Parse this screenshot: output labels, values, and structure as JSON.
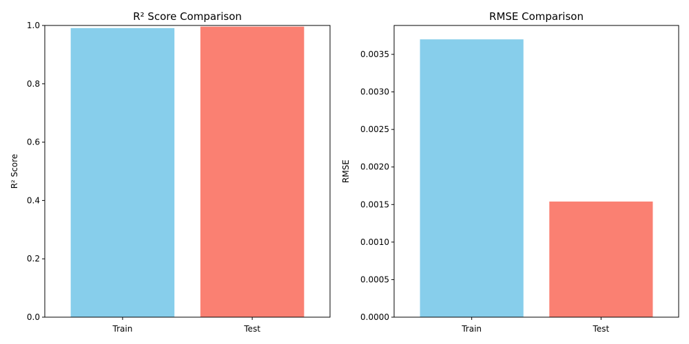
{
  "chart_data": [
    {
      "type": "bar",
      "title": "R² Score Comparison",
      "xlabel": "",
      "ylabel": "R² Score",
      "categories": [
        "Train",
        "Test"
      ],
      "values": [
        0.991,
        0.996
      ],
      "colors": [
        "#87CEEB",
        "#FA8072"
      ],
      "ylim": [
        0,
        1.0
      ],
      "yticks": [
        0.0,
        0.2,
        0.4,
        0.6,
        0.8,
        1.0
      ],
      "ytick_labels": [
        "0.0",
        "0.2",
        "0.4",
        "0.6",
        "0.8",
        "1.0"
      ],
      "grid": false
    },
    {
      "type": "bar",
      "title": "RMSE Comparison",
      "xlabel": "",
      "ylabel": "RMSE",
      "categories": [
        "Train",
        "Test"
      ],
      "values": [
        0.0037,
        0.00154
      ],
      "colors": [
        "#87CEEB",
        "#FA8072"
      ],
      "ylim": [
        0,
        0.003885
      ],
      "yticks": [
        0.0,
        0.0005,
        0.001,
        0.0015,
        0.002,
        0.0025,
        0.003,
        0.0035
      ],
      "ytick_labels": [
        "0.0000",
        "0.0005",
        "0.0010",
        "0.0015",
        "0.0020",
        "0.0025",
        "0.0030",
        "0.0035"
      ],
      "grid": false
    }
  ]
}
